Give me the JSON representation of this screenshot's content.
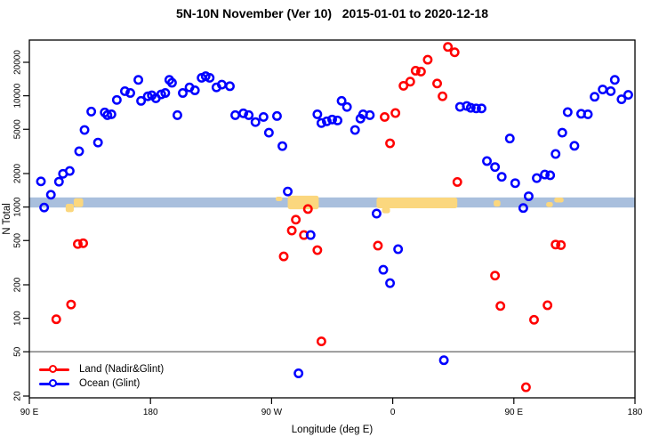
{
  "chart_data": {
    "type": "scatter",
    "title": "5N-10N November (Ver 10)   2015-01-01 to 2020-12-18",
    "xlabel": "Longitude (deg E)",
    "ylabel": "N Total",
    "x_axis": {
      "lim": [
        90,
        540
      ],
      "ticks": [
        {
          "value": 90,
          "label": "90 E"
        },
        {
          "value": 180,
          "label": "180"
        },
        {
          "value": 270,
          "label": "90 W"
        },
        {
          "value": 360,
          "label": "0"
        },
        {
          "value": 450,
          "label": "90 E"
        },
        {
          "value": 540,
          "label": "180"
        }
      ]
    },
    "y_axis": {
      "scale": "log",
      "lim": [
        20,
        20000
      ],
      "ticks": [
        20,
        50,
        100,
        200,
        500,
        1000,
        2000,
        5000,
        10000,
        20000
      ]
    },
    "reference_line": {
      "y": 50,
      "color": "#7f7f7f"
    },
    "band": {
      "n_min": 990,
      "n_max": 1220,
      "color": "#a9bfdd"
    },
    "highlight_patches": {
      "color": "#fbd77e",
      "rects": [
        {
          "deg": [
            117,
            123
          ],
          "n": [
            900,
            1070
          ]
        },
        {
          "deg": [
            123,
            130
          ],
          "n": [
            1000,
            1200
          ]
        },
        {
          "deg": [
            273,
            278
          ],
          "n": [
            1130,
            1240
          ]
        },
        {
          "deg": [
            282,
            305
          ],
          "n": [
            955,
            1265
          ]
        },
        {
          "deg": [
            348,
            408
          ],
          "n": [
            975,
            1215
          ]
        },
        {
          "deg": [
            352,
            358
          ],
          "n": [
            880,
            990
          ]
        },
        {
          "deg": [
            435,
            440
          ],
          "n": [
            1010,
            1150
          ]
        },
        {
          "deg": [
            474,
            479
          ],
          "n": [
            1000,
            1110
          ]
        },
        {
          "deg": [
            480,
            487
          ],
          "n": [
            1100,
            1215
          ]
        }
      ]
    },
    "legend": {
      "position": "bottom-left",
      "items": [
        {
          "label": "Land (Nadir&Glint)",
          "color": "#ff0000"
        },
        {
          "label": "Ocean (Glint)",
          "color": "#0000ff"
        }
      ]
    },
    "series": [
      {
        "name": "Land (Nadir&Glint)",
        "color": "#ff0000",
        "points": [
          [
            110,
            98
          ],
          [
            121,
            133
          ],
          [
            126,
            465
          ],
          [
            130,
            473
          ],
          [
            279,
            360
          ],
          [
            285,
            615
          ],
          [
            288,
            770
          ],
          [
            294,
            560
          ],
          [
            297,
            960
          ],
          [
            304,
            410
          ],
          [
            307,
            62
          ],
          [
            349,
            450
          ],
          [
            354,
            6450
          ],
          [
            358,
            3740
          ],
          [
            362,
            7000
          ],
          [
            368,
            12300
          ],
          [
            373,
            13400
          ],
          [
            377,
            16800
          ],
          [
            381,
            16500
          ],
          [
            386,
            21100
          ],
          [
            393,
            12900
          ],
          [
            397,
            9900
          ],
          [
            401,
            27500
          ],
          [
            406,
            24600
          ],
          [
            408,
            1680
          ],
          [
            436,
            242
          ],
          [
            440,
            129
          ],
          [
            459,
            24
          ],
          [
            465,
            97
          ],
          [
            475,
            131
          ],
          [
            481,
            460
          ],
          [
            485,
            455
          ]
        ]
      },
      {
        "name": "Ocean (Glint)",
        "color": "#0000ff",
        "points": [
          [
            98.6,
            1700
          ],
          [
            101,
            990
          ],
          [
            106,
            1290
          ],
          [
            112,
            1690
          ],
          [
            115,
            1990
          ],
          [
            120,
            2110
          ],
          [
            127,
            3170
          ],
          [
            131,
            4930
          ],
          [
            136,
            7210
          ],
          [
            141,
            3800
          ],
          [
            146,
            7080
          ],
          [
            148,
            6700
          ],
          [
            151,
            6820
          ],
          [
            155,
            9180
          ],
          [
            161,
            11000
          ],
          [
            165,
            10600
          ],
          [
            171,
            13900
          ],
          [
            173,
            9000
          ],
          [
            178,
            9900
          ],
          [
            181,
            10100
          ],
          [
            184,
            9500
          ],
          [
            188,
            10300
          ],
          [
            191,
            10600
          ],
          [
            194,
            13900
          ],
          [
            196,
            13100
          ],
          [
            200,
            6700
          ],
          [
            204,
            10600
          ],
          [
            209,
            11900
          ],
          [
            213,
            11200
          ],
          [
            218,
            14500
          ],
          [
            221,
            15000
          ],
          [
            224,
            14500
          ],
          [
            229,
            11900
          ],
          [
            233,
            12600
          ],
          [
            239,
            12200
          ],
          [
            243,
            6700
          ],
          [
            249,
            6960
          ],
          [
            253,
            6700
          ],
          [
            258,
            5800
          ],
          [
            264,
            6450
          ],
          [
            268,
            4660
          ],
          [
            274,
            6580
          ],
          [
            278,
            3530
          ],
          [
            282,
            1380
          ],
          [
            290,
            32
          ],
          [
            299,
            560
          ],
          [
            304,
            6820
          ],
          [
            307,
            5690
          ],
          [
            311,
            5900
          ],
          [
            315,
            6120
          ],
          [
            319,
            6000
          ],
          [
            322,
            9000
          ],
          [
            326,
            7940
          ],
          [
            332,
            4930
          ],
          [
            336,
            6230
          ],
          [
            338,
            6820
          ],
          [
            343,
            6700
          ],
          [
            348,
            873
          ],
          [
            353,
            273
          ],
          [
            358,
            207
          ],
          [
            364,
            418
          ],
          [
            398,
            42
          ],
          [
            410,
            7960
          ],
          [
            415,
            8100
          ],
          [
            418,
            7800
          ],
          [
            422,
            7700
          ],
          [
            426,
            7700
          ],
          [
            430,
            2590
          ],
          [
            436,
            2290
          ],
          [
            441,
            1870
          ],
          [
            447,
            4130
          ],
          [
            451,
            1640
          ],
          [
            457,
            980
          ],
          [
            461,
            1250
          ],
          [
            467,
            1820
          ],
          [
            473,
            1960
          ],
          [
            477,
            1930
          ],
          [
            481,
            3000
          ],
          [
            486,
            4660
          ],
          [
            490,
            7130
          ],
          [
            495,
            3550
          ],
          [
            500,
            6890
          ],
          [
            505,
            6820
          ],
          [
            510,
            9800
          ],
          [
            516,
            11400
          ],
          [
            522,
            11000
          ],
          [
            525,
            13900
          ],
          [
            530,
            9300
          ],
          [
            535,
            10200
          ]
        ]
      }
    ]
  }
}
